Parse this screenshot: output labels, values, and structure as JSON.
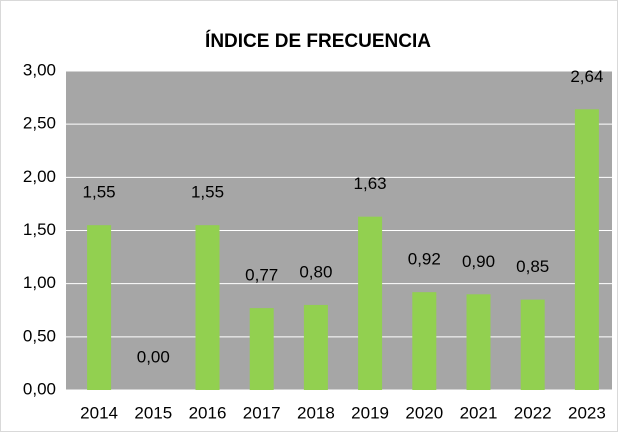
{
  "chart_data": {
    "type": "bar",
    "title": "ÍNDICE DE FRECUENCIA",
    "categories": [
      "2014",
      "2015",
      "2016",
      "2017",
      "2018",
      "2019",
      "2020",
      "2021",
      "2022",
      "2023"
    ],
    "values": [
      1.55,
      0.0,
      1.55,
      0.77,
      0.8,
      1.63,
      0.92,
      0.9,
      0.85,
      2.64
    ],
    "value_labels": [
      "1,55",
      "0,00",
      "1,55",
      "0,77",
      "0,80",
      "1,63",
      "0,92",
      "0,90",
      "0,85",
      "2,64"
    ],
    "color": "#92d050",
    "ylim": [
      0,
      3
    ],
    "yticks": [
      {
        "value": 0,
        "label": "0,00"
      },
      {
        "value": 0.5,
        "label": "0,50"
      },
      {
        "value": 1,
        "label": "1,00"
      },
      {
        "value": 1.5,
        "label": "1,50"
      },
      {
        "value": 2,
        "label": "2,00"
      },
      {
        "value": 2.5,
        "label": "2,50"
      },
      {
        "value": 3,
        "label": "3,00"
      }
    ],
    "grid": true
  }
}
